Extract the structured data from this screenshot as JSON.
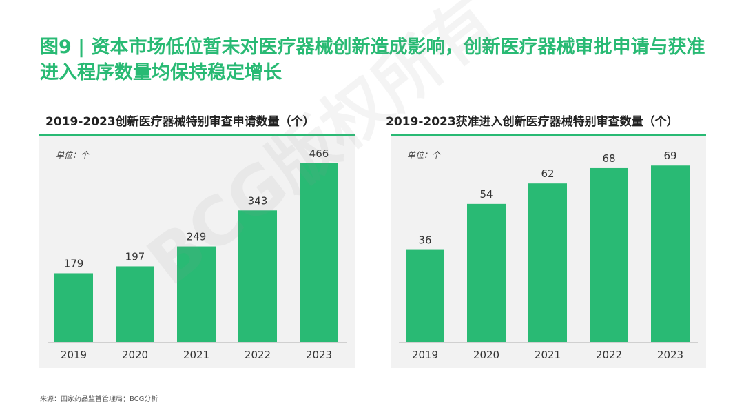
{
  "page": {
    "title": "图9 | 资本市场低位暂未对医疗器械创新造成影响，创新医疗器械审批申请与获准进入程序数量均保持稳定增长",
    "watermark": "BCG版权所有",
    "source": "来源：国家药品监督管理局；BCG分析"
  },
  "colors": {
    "accent": "#29BA74",
    "bar": "#29BA74",
    "panel_bg": "#F2F2F2"
  },
  "chart_data": [
    {
      "type": "bar",
      "title": "2019-2023创新医疗器械特别审查申请数量（个）",
      "unit_label": "单位：个",
      "categories": [
        "2019",
        "2020",
        "2021",
        "2022",
        "2023"
      ],
      "values": [
        179,
        197,
        249,
        343,
        466
      ],
      "ylim": [
        0,
        500
      ]
    },
    {
      "type": "bar",
      "title": "2019-2023获准进入创新医疗器械特别审查数量（个）",
      "unit_label": "单位：个",
      "categories": [
        "2019",
        "2020",
        "2021",
        "2022",
        "2023"
      ],
      "values": [
        36,
        54,
        62,
        68,
        69
      ],
      "ylim": [
        0,
        75
      ]
    }
  ]
}
